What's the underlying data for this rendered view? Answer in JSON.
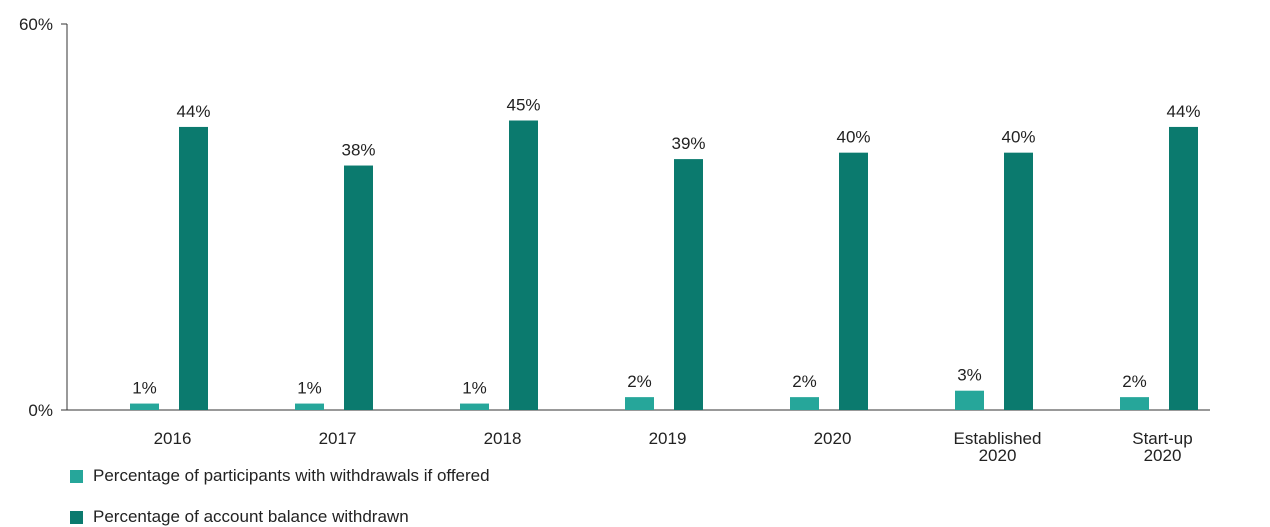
{
  "chart_data": {
    "type": "bar",
    "categories": [
      [
        "2016"
      ],
      [
        "2017"
      ],
      [
        "2018"
      ],
      [
        "2019"
      ],
      [
        "2020"
      ],
      [
        "Established",
        "2020"
      ],
      [
        "Start-up",
        "2020"
      ]
    ],
    "series": [
      {
        "name": "Percentage of participants with withdrawals if offered",
        "values": [
          1,
          1,
          1,
          2,
          2,
          3,
          2
        ],
        "labels": [
          "1%",
          "1%",
          "1%",
          "2%",
          "2%",
          "3%",
          "2%"
        ],
        "color": "#26a69a"
      },
      {
        "name": "Percentage of account balance withdrawn",
        "values": [
          44,
          38,
          45,
          39,
          40,
          40,
          44
        ],
        "labels": [
          "44%",
          "38%",
          "45%",
          "39%",
          "40%",
          "40%",
          "44%"
        ],
        "color": "#0b7a6e"
      }
    ],
    "ylim": [
      0,
      60
    ],
    "yticks": [
      "0%",
      "60%"
    ],
    "grid": false,
    "legend": "bottom-left"
  }
}
